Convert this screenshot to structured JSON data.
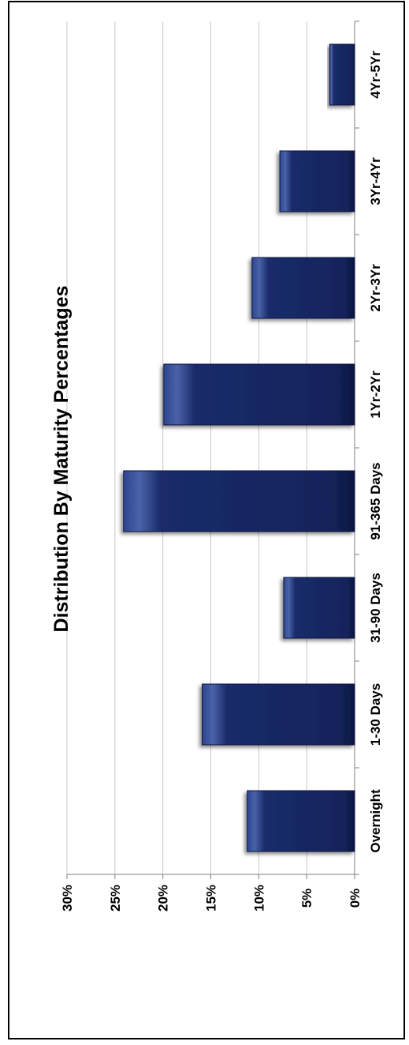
{
  "chart_data": {
    "type": "bar",
    "orientation": "horizontal",
    "title": "Distribution By Maturity Percentages",
    "xlabel": "",
    "ylabel": "",
    "categories": [
      "Overnight",
      "1-30 Days",
      "31-90 Days",
      "91-365 Days",
      "1Yr-2Yr",
      "2Yr-3Yr",
      "3Yr-4Yr",
      "4Yr-5Yr"
    ],
    "values": [
      11.2,
      15.9,
      7.4,
      24.1,
      19.9,
      10.7,
      7.8,
      2.6
    ],
    "value_axis": {
      "min": 0,
      "max": 30,
      "ticks": [
        {
          "value": 0,
          "label": "0%"
        },
        {
          "value": 5,
          "label": "5%"
        },
        {
          "value": 10,
          "label": "10%"
        },
        {
          "value": 15,
          "label": "15%"
        },
        {
          "value": 20,
          "label": "20%"
        },
        {
          "value": 25,
          "label": "25%"
        },
        {
          "value": 30,
          "label": "30%"
        }
      ]
    },
    "grid": true,
    "legend": "none",
    "bar_color": "#1a2c6b",
    "bar_highlight_color": "#4a62a8"
  }
}
